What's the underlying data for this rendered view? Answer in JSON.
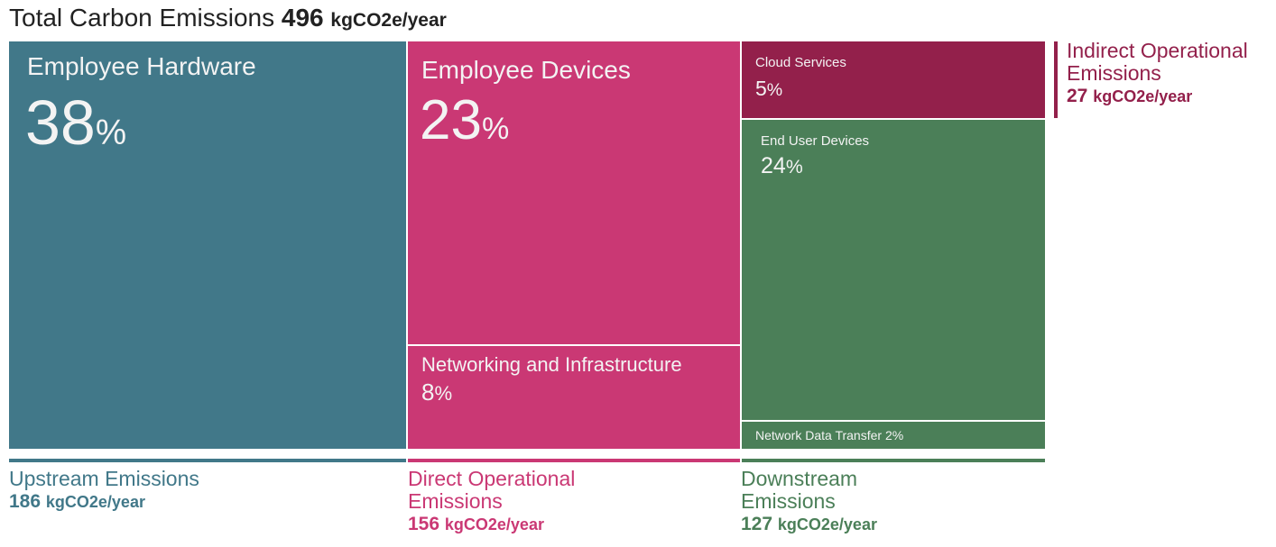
{
  "title": {
    "label": "Total Carbon Emissions",
    "value": "496",
    "unit": "kgCO2e/year"
  },
  "chart_data": {
    "type": "treemap",
    "unit": "kgCO2e/year",
    "total": 496,
    "groups": [
      {
        "name": "Upstream Emissions",
        "value": 186,
        "color": "#417889",
        "items": [
          {
            "name": "Employee Hardware",
            "percent": 38
          }
        ]
      },
      {
        "name": "Direct Operational Emissions",
        "value": 156,
        "color": "#CA3874",
        "items": [
          {
            "name": "Employee Devices",
            "percent": 23
          },
          {
            "name": "Networking and Infrastructure",
            "percent": 8
          }
        ]
      },
      {
        "name": "Downstream Emissions",
        "value": 127,
        "color": "#4B7F58",
        "items": [
          {
            "name": "End User Devices",
            "percent": 24
          },
          {
            "name": "Network Data Transfer",
            "percent": 2
          }
        ]
      },
      {
        "name": "Indirect Operational Emissions",
        "value": 27,
        "color": "#93204B",
        "items": [
          {
            "name": "Cloud Services",
            "percent": 5
          }
        ]
      }
    ]
  },
  "labels": {
    "upstream_line1": "Upstream Emissions",
    "direct_line1": "Direct Operational",
    "direct_line2": "Emissions",
    "downstream_line1": "Downstream",
    "downstream_line2": "Emissions",
    "indirect_line1": "Indirect Operational",
    "indirect_line2": "Emissions",
    "percent_sign": "%"
  }
}
